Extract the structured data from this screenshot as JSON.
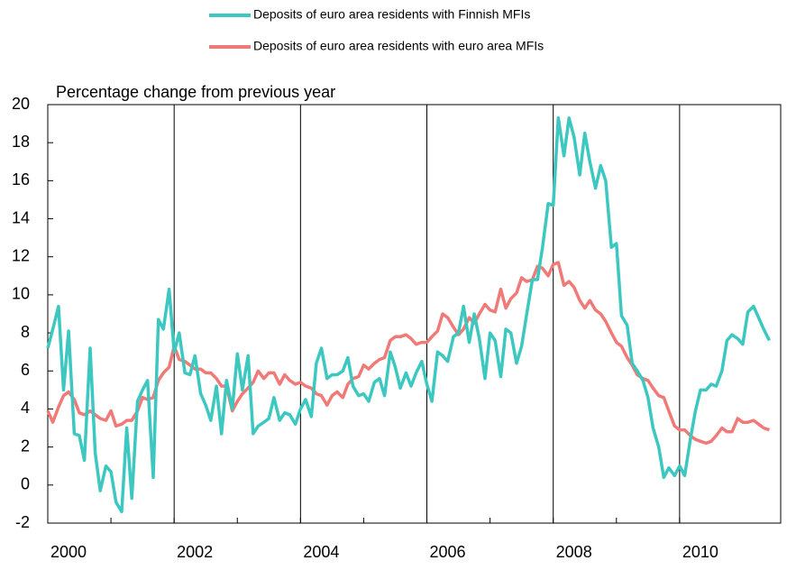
{
  "chart_data": {
    "type": "line",
    "y_axis_label": "Percentage change from previous year",
    "x": [
      2000.0,
      2000.08,
      2000.17,
      2000.25,
      2000.33,
      2000.42,
      2000.5,
      2000.58,
      2000.67,
      2000.75,
      2000.83,
      2000.92,
      2001.0,
      2001.08,
      2001.17,
      2001.25,
      2001.33,
      2001.42,
      2001.5,
      2001.58,
      2001.67,
      2001.75,
      2001.83,
      2001.92,
      2002.0,
      2002.08,
      2002.17,
      2002.25,
      2002.33,
      2002.42,
      2002.5,
      2002.58,
      2002.67,
      2002.75,
      2002.83,
      2002.92,
      2003.0,
      2003.08,
      2003.17,
      2003.25,
      2003.33,
      2003.42,
      2003.5,
      2003.58,
      2003.67,
      2003.75,
      2003.83,
      2003.92,
      2004.0,
      2004.08,
      2004.17,
      2004.25,
      2004.33,
      2004.42,
      2004.5,
      2004.58,
      2004.67,
      2004.75,
      2004.83,
      2004.92,
      2005.0,
      2005.08,
      2005.17,
      2005.25,
      2005.33,
      2005.42,
      2005.5,
      2005.58,
      2005.67,
      2005.75,
      2005.83,
      2005.92,
      2006.0,
      2006.08,
      2006.17,
      2006.25,
      2006.33,
      2006.42,
      2006.5,
      2006.58,
      2006.67,
      2006.75,
      2006.83,
      2006.92,
      2007.0,
      2007.08,
      2007.17,
      2007.25,
      2007.33,
      2007.42,
      2007.5,
      2007.58,
      2007.67,
      2007.75,
      2007.83,
      2007.92,
      2008.0,
      2008.08,
      2008.17,
      2008.25,
      2008.33,
      2008.42,
      2008.5,
      2008.58,
      2008.67,
      2008.75,
      2008.83,
      2008.92,
      2009.0,
      2009.08,
      2009.17,
      2009.25,
      2009.33,
      2009.42,
      2009.5,
      2009.58,
      2009.67,
      2009.75,
      2009.83,
      2009.92,
      2010.0,
      2010.08,
      2010.17,
      2010.25,
      2010.33,
      2010.42,
      2010.5,
      2010.58,
      2010.67,
      2010.75,
      2010.83,
      2010.92,
      2011.0,
      2011.08,
      2011.17,
      2011.25,
      2011.33,
      2011.42
    ],
    "series": [
      {
        "name": "Deposits of euro area residents with Finnish MFIs",
        "color": "#3cc8c0",
        "values": [
          7.2,
          8.2,
          9.4,
          5.0,
          8.1,
          2.7,
          2.6,
          1.3,
          7.2,
          1.7,
          -0.3,
          1.0,
          0.7,
          -0.9,
          -1.4,
          3.0,
          -0.7,
          4.4,
          5.0,
          5.5,
          0.4,
          8.7,
          8.2,
          10.3,
          7.0,
          8.0,
          5.9,
          5.8,
          6.8,
          4.8,
          4.2,
          3.4,
          5.2,
          2.7,
          5.5,
          4.0,
          6.9,
          5.0,
          6.8,
          2.7,
          3.1,
          3.3,
          3.5,
          4.6,
          3.4,
          3.8,
          3.7,
          3.2,
          4.0,
          4.5,
          3.6,
          6.4,
          7.2,
          5.6,
          5.8,
          5.8,
          6.0,
          6.7,
          5.2,
          4.7,
          4.8,
          4.4,
          5.4,
          5.6,
          4.7,
          7.0,
          6.2,
          5.1,
          5.9,
          5.2,
          5.9,
          6.5,
          5.3,
          4.4,
          7.0,
          6.8,
          6.5,
          7.8,
          8.0,
          9.4,
          7.5,
          9.0,
          7.7,
          5.6,
          8.0,
          7.6,
          5.7,
          8.2,
          8.0,
          6.4,
          7.3,
          9.0,
          10.8,
          10.8,
          12.5,
          14.8,
          14.7,
          19.3,
          17.3,
          19.3,
          18.3,
          16.3,
          18.5,
          17.0,
          15.6,
          16.8,
          16.0,
          12.5,
          12.7,
          8.9,
          8.4,
          6.4,
          6.0,
          5.5,
          4.6,
          3.0,
          2.0,
          0.4,
          0.9,
          0.5,
          1.0,
          0.5,
          2.4,
          3.9,
          5.0,
          5.0,
          5.3,
          5.2,
          6.0,
          7.6,
          7.9,
          7.7,
          7.4,
          9.1,
          9.4,
          8.8,
          8.2,
          7.6
        ]
      },
      {
        "name": "Deposits of euro area residents with euro area MFIs",
        "color": "#f07a78",
        "values": [
          3.9,
          3.3,
          4.1,
          4.7,
          4.9,
          4.5,
          3.8,
          3.7,
          3.9,
          3.7,
          3.5,
          3.4,
          3.9,
          3.1,
          3.2,
          3.4,
          3.4,
          3.9,
          4.6,
          4.5,
          4.6,
          5.5,
          5.9,
          6.2,
          7.3,
          6.6,
          6.5,
          6.3,
          6.1,
          6.1,
          5.9,
          5.9,
          5.6,
          5.2,
          5.2,
          3.9,
          4.4,
          4.8,
          5.1,
          5.4,
          6.0,
          5.6,
          5.9,
          5.9,
          5.3,
          5.8,
          5.5,
          5.3,
          5.4,
          5.2,
          5.1,
          4.8,
          4.7,
          4.2,
          4.7,
          4.9,
          4.6,
          5.3,
          5.6,
          5.7,
          6.3,
          6.1,
          6.4,
          6.6,
          6.7,
          7.6,
          7.8,
          7.8,
          7.9,
          7.7,
          7.4,
          7.5,
          7.5,
          7.8,
          8.1,
          9.0,
          8.8,
          8.3,
          7.9,
          8.2,
          8.8,
          8.5,
          9.0,
          9.5,
          9.2,
          9.1,
          10.3,
          9.3,
          9.8,
          10.1,
          10.9,
          10.7,
          10.8,
          11.5,
          11.4,
          11.0,
          11.6,
          11.7,
          10.5,
          10.7,
          10.4,
          9.7,
          9.3,
          9.7,
          9.2,
          9.0,
          8.6,
          8.0,
          7.5,
          7.3,
          6.7,
          6.3,
          5.8,
          5.6,
          5.5,
          5.1,
          4.7,
          4.6,
          3.9,
          3.1,
          2.9,
          2.9,
          2.6,
          2.4,
          2.3,
          2.2,
          2.3,
          2.6,
          3.0,
          2.8,
          2.8,
          3.5,
          3.3,
          3.3,
          3.4,
          3.2,
          3.0,
          2.9
        ]
      }
    ],
    "xlim": [
      2000,
      2011.6
    ],
    "xticks": [
      2000,
      2002,
      2004,
      2006,
      2008,
      2010
    ],
    "ylim": [
      -2,
      20
    ],
    "yticks": [
      -2,
      0,
      2,
      4,
      6,
      8,
      10,
      12,
      14,
      16,
      18,
      20
    ],
    "grid": "x",
    "legend": "top"
  }
}
